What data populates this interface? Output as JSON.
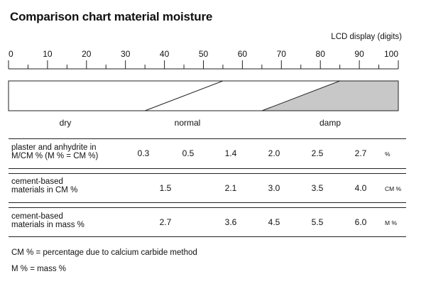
{
  "title": "Comparison chart material moisture",
  "display_label": "LCD display (digits)",
  "scale": {
    "min": 0,
    "max": 100,
    "labeled_ticks": [
      "0",
      "10",
      "20",
      "30",
      "40",
      "50",
      "60",
      "70",
      "80",
      "90",
      "100"
    ],
    "normal_start_bottom": 35,
    "normal_end_top": 55,
    "damp_start_bottom": 65,
    "damp_end_top": 85
  },
  "zones": {
    "dry": "dry",
    "normal": "normal",
    "damp": "damp"
  },
  "rows": [
    {
      "label_line1": "plaster and anhydrite in",
      "label_line2": "M/CM % (M % = CM %)",
      "values": [
        "0.3",
        "0.5",
        "1.4",
        "2.0",
        "2.5",
        "2.7"
      ],
      "unit": "%"
    },
    {
      "label_line1": "cement-based",
      "label_line2": "materials in CM %",
      "values": [
        "1.5",
        "2.1",
        "3.0",
        "3.5",
        "4.0"
      ],
      "unit": "CM %"
    },
    {
      "label_line1": "cement-based",
      "label_line2": "materials in mass %",
      "values": [
        "2.7",
        "3.6",
        "4.5",
        "5.5",
        "6.0"
      ],
      "unit": "M %"
    }
  ],
  "notes": [
    "CM % = percentage due to calcium carbide method",
    "M % = mass %"
  ],
  "colors": {
    "damp_fill": "#c8c8c8",
    "line": "#222222"
  }
}
